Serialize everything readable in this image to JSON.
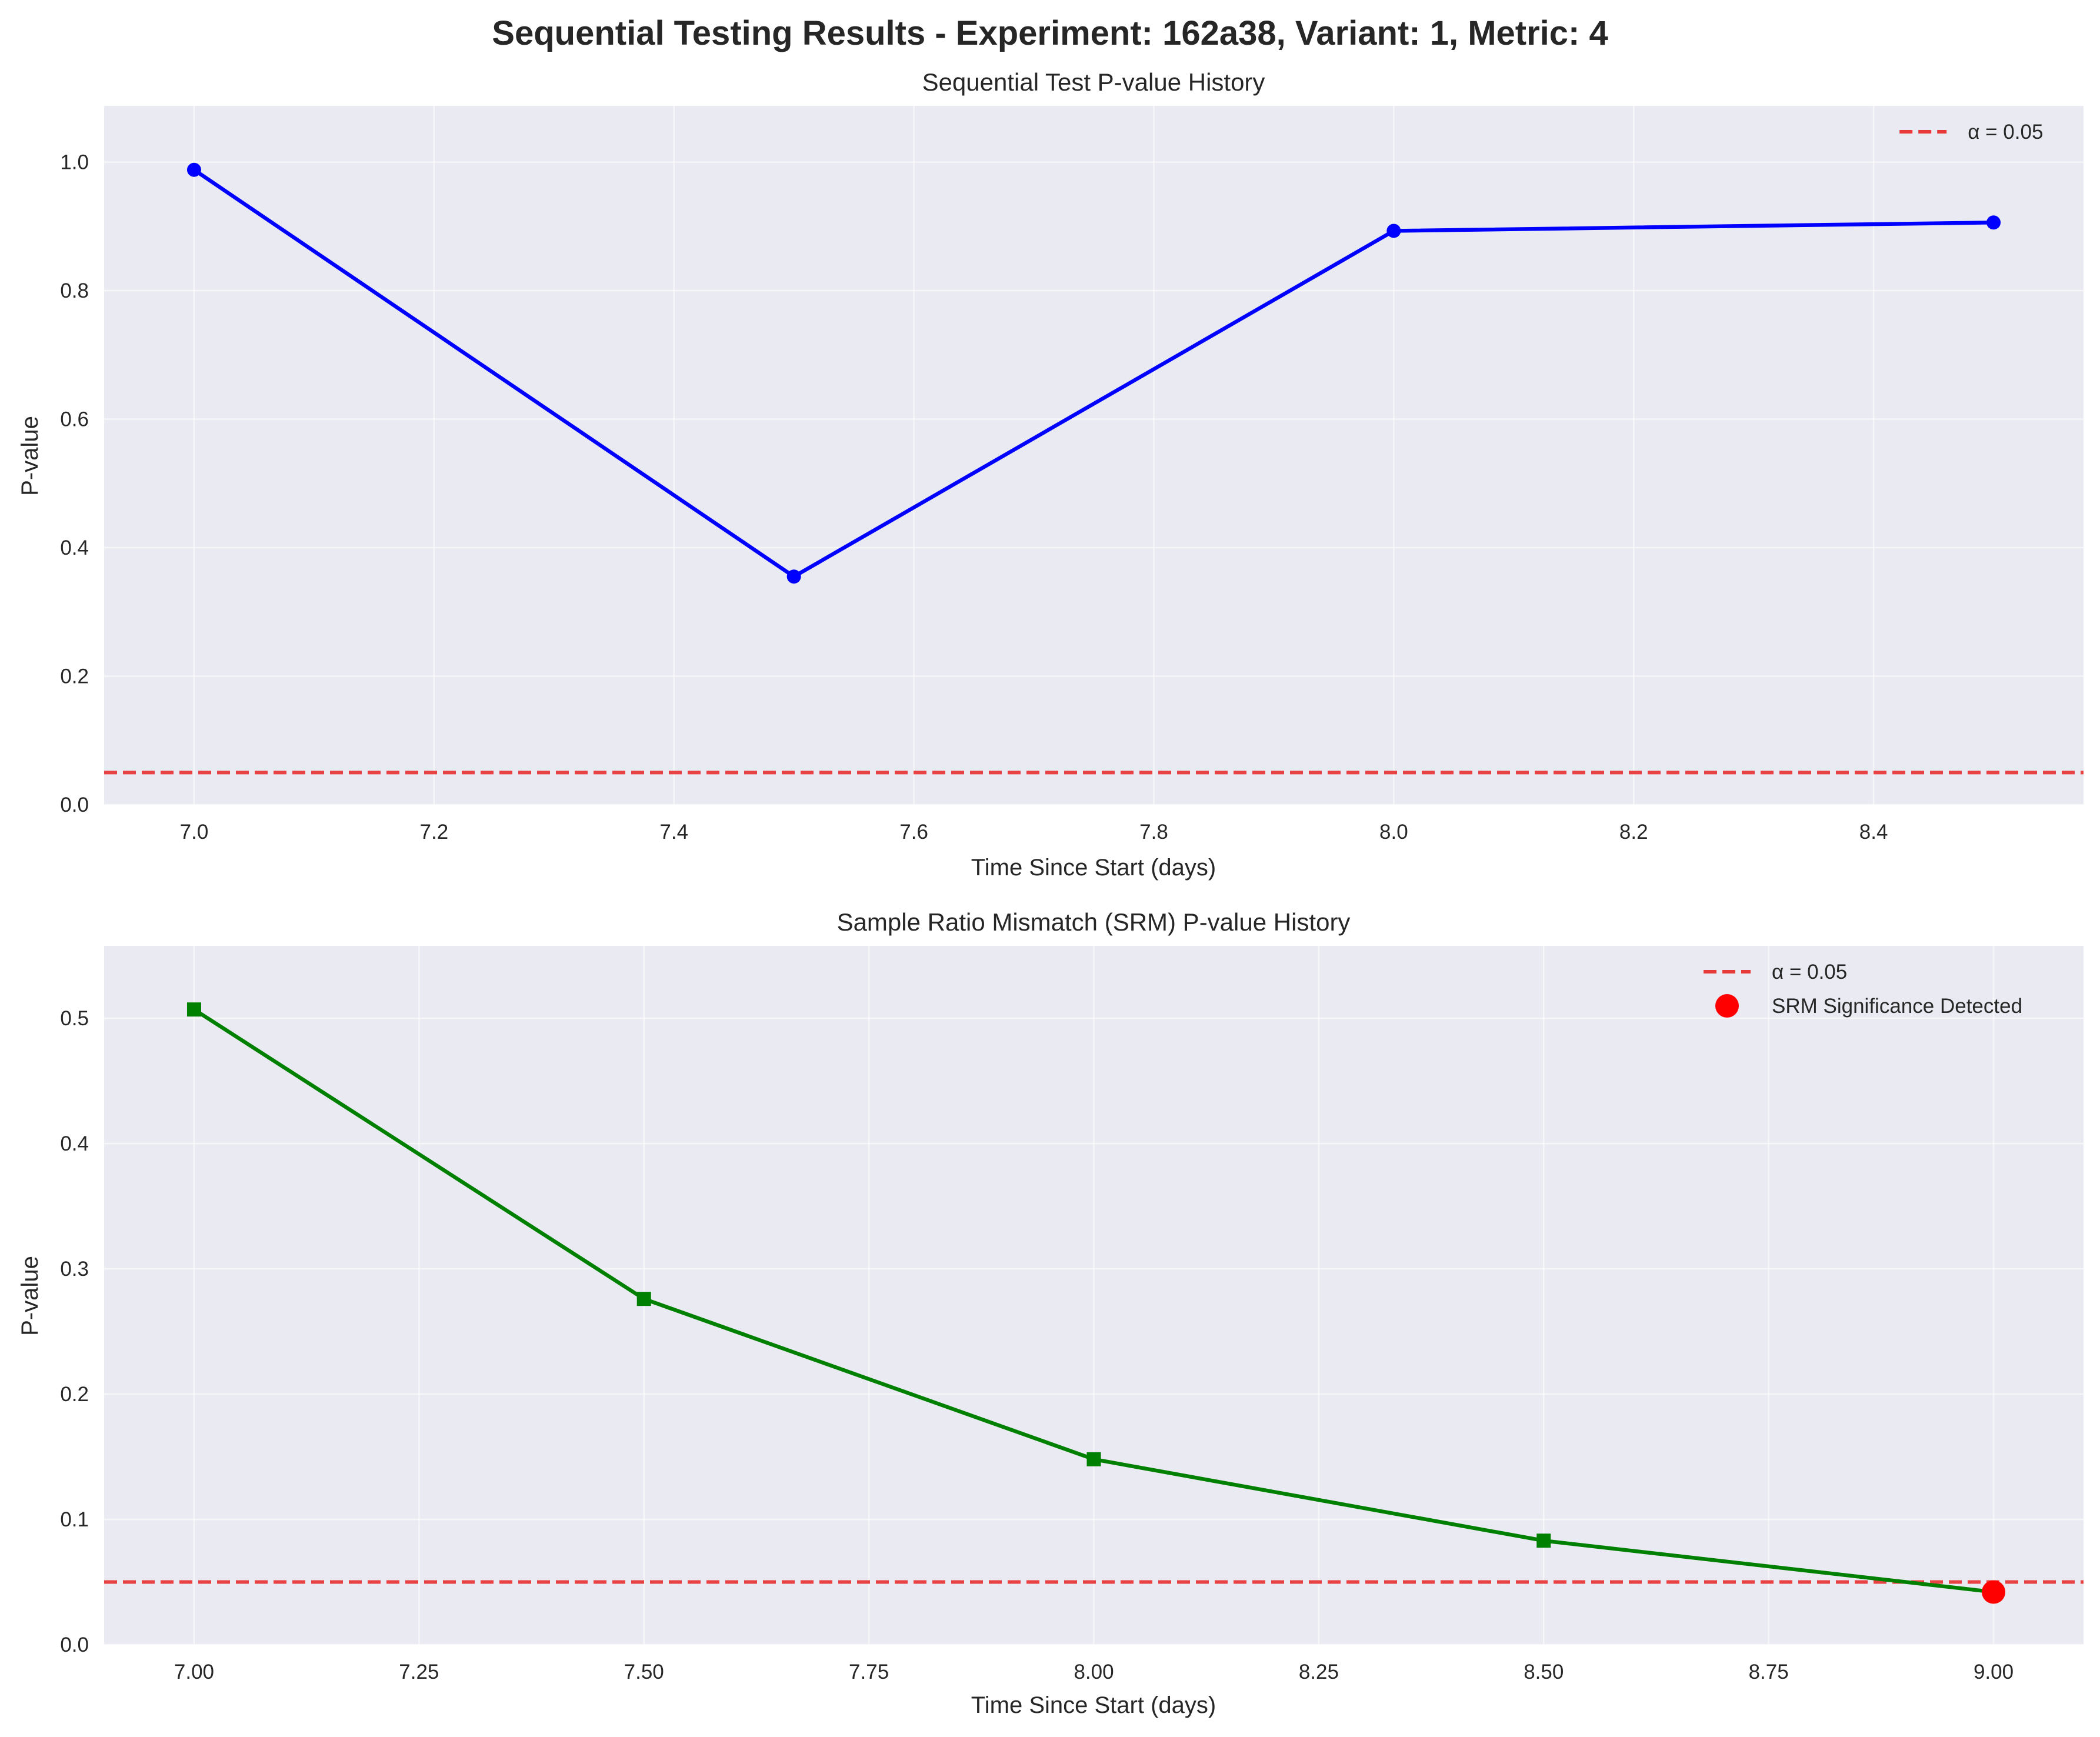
{
  "figure": {
    "suptitle": "Sequential Testing Results - Experiment: 162a38, Variant: 1, Metric: 4"
  },
  "chart_data": [
    {
      "type": "line",
      "title": "Sequential Test P-value History",
      "xlabel": "Time Since Start (days)",
      "ylabel": "P-value",
      "xlim": [
        6.925,
        8.575
      ],
      "ylim": [
        0,
        1.0875
      ],
      "x_ticks": [
        "7.0",
        "7.2",
        "7.4",
        "7.6",
        "7.8",
        "8.0",
        "8.2",
        "8.4"
      ],
      "y_ticks": [
        "0.0",
        "0.2",
        "0.4",
        "0.6",
        "0.8",
        "1.0"
      ],
      "grid": true,
      "legend_placement": "upper right",
      "series": [
        {
          "color": "#0000ff",
          "marker": "circle",
          "x": [
            7.0,
            7.5,
            8.0,
            8.5
          ],
          "y": [
            0.988,
            0.355,
            0.893,
            0.906
          ]
        }
      ],
      "hlines": [
        {
          "name": "α = 0.05",
          "y": 0.05,
          "color": "#e8393a",
          "style": "dashed"
        }
      ]
    },
    {
      "type": "line",
      "title": "Sample Ratio Mismatch (SRM) P-value History",
      "xlabel": "Time Since Start (days)",
      "ylabel": "P-value",
      "xlim": [
        6.9,
        9.1
      ],
      "ylim": [
        0,
        0.5578
      ],
      "x_ticks": [
        "7.00",
        "7.25",
        "7.50",
        "7.75",
        "8.00",
        "8.25",
        "8.50",
        "8.75",
        "9.00"
      ],
      "y_ticks": [
        "0.0",
        "0.1",
        "0.2",
        "0.3",
        "0.4",
        "0.5"
      ],
      "grid": true,
      "legend_placement": "upper right",
      "series": [
        {
          "color": "#008000",
          "marker": "square",
          "x": [
            7.0,
            7.5,
            8.0,
            8.5,
            9.0
          ],
          "y": [
            0.507,
            0.276,
            0.148,
            0.083,
            0.042
          ]
        }
      ],
      "hlines": [
        {
          "name": "α = 0.05",
          "y": 0.05,
          "color": "#e8393a",
          "style": "dashed"
        }
      ],
      "highlight_points": {
        "name": "SRM Significance Detected",
        "color": "#ff0000",
        "x": [
          9.0
        ],
        "y": [
          0.042
        ]
      }
    }
  ]
}
